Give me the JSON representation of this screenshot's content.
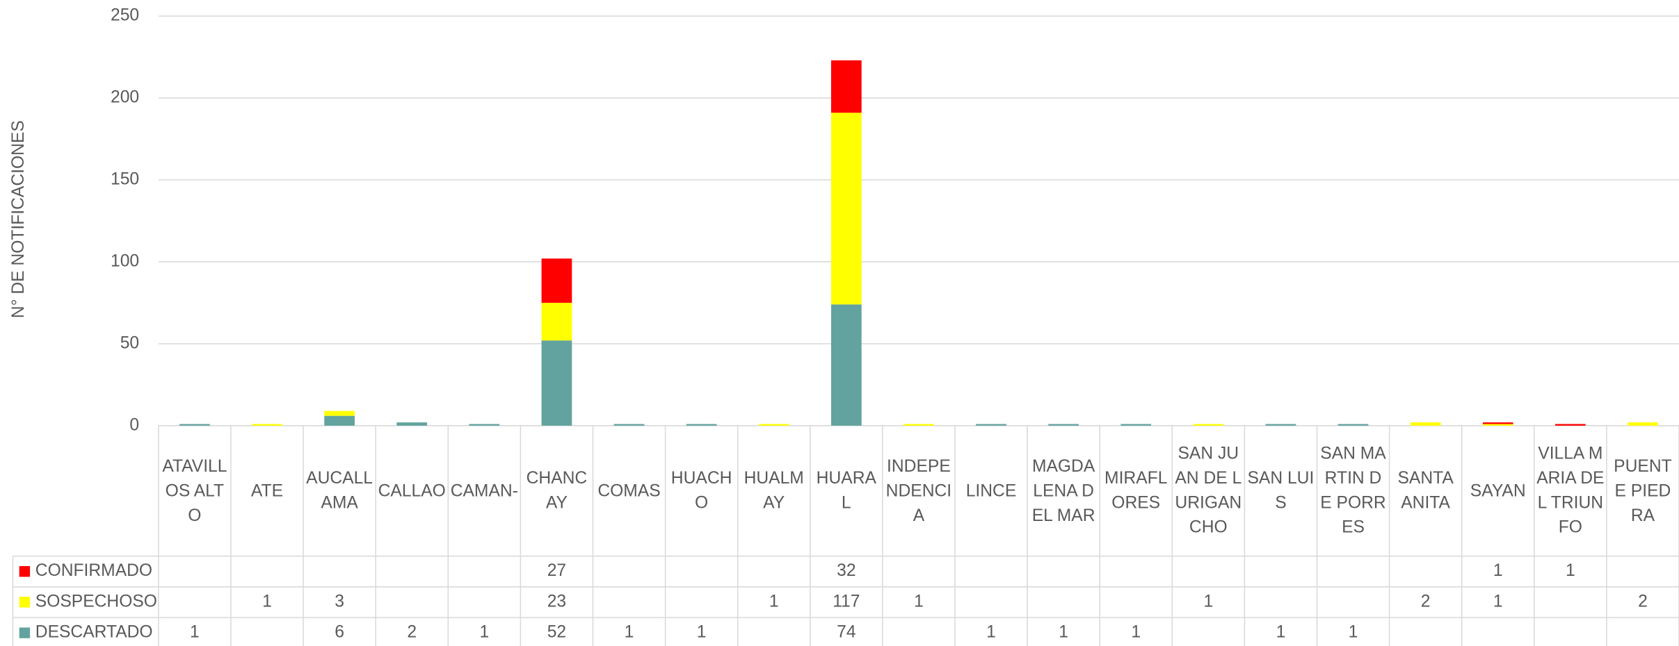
{
  "chart_data": {
    "type": "bar",
    "stacked": true,
    "y_label": "N° DE NOTIFICACIONES",
    "categories": [
      "ATAVILLOS ALTO",
      "ATE",
      "AUCALLAMA",
      "CALLAO",
      "CAMAN-",
      "CHANCAY",
      "COMAS",
      "HUACHO",
      "HUALMAY",
      "HUARAL",
      "INDEPENDENCIA",
      "LINCE",
      "MAGDALENA DEL MAR",
      "MIRAFLORES",
      "SAN JUAN DE LURIGANCHO",
      "SAN LUIS",
      "SAN MARTIN DE PORRES",
      "SANTA ANITA",
      "SAYAN",
      "VILLA MARIA DEL TRIUNFO",
      "PUENTE PIEDRA"
    ],
    "series": [
      {
        "name": "CONFIRMADO",
        "color": "#ff0000",
        "values": [
          null,
          null,
          null,
          null,
          null,
          27,
          null,
          null,
          null,
          32,
          null,
          null,
          null,
          null,
          null,
          null,
          null,
          null,
          1,
          1,
          null
        ]
      },
      {
        "name": "SOSPECHOSO",
        "color": "#ffff00",
        "values": [
          null,
          1,
          3,
          null,
          null,
          23,
          null,
          null,
          1,
          117,
          1,
          null,
          null,
          null,
          1,
          null,
          null,
          2,
          1,
          null,
          2
        ]
      },
      {
        "name": "DESCARTADO",
        "color": "#62a39f",
        "values": [
          1,
          null,
          6,
          2,
          1,
          52,
          1,
          1,
          null,
          74,
          null,
          1,
          1,
          1,
          null,
          1,
          1,
          null,
          null,
          null,
          null
        ]
      }
    ],
    "ylim": [
      0,
      250
    ],
    "yticks": [
      0,
      50,
      100,
      150,
      200,
      250
    ],
    "grid": true
  }
}
